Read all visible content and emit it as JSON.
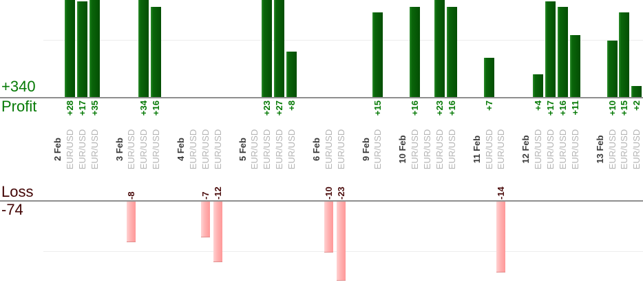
{
  "labels": {
    "profit_total": "+340",
    "profit_axis": "Profit",
    "loss_axis": "Loss",
    "loss_total": "-74"
  },
  "chart_data": {
    "type": "bar",
    "title": "",
    "orientation": "vertical",
    "profit_total": "+340",
    "loss_total": "-74",
    "ylabel_profit": "Profit",
    "ylabel_loss": "Loss",
    "gridlines": {
      "profit_value": 10,
      "loss_value": -10
    },
    "value_label_format": "signed",
    "groups": [
      {
        "date": "2 Feb",
        "trades": [
          {
            "symbol": "EUR/USD",
            "value": 28
          },
          {
            "symbol": "EUR/USD",
            "value": 17
          },
          {
            "symbol": "EUR/USD",
            "value": 35
          }
        ]
      },
      {
        "date": "3 Feb",
        "trades": [
          {
            "symbol": "EUR/USD",
            "value": -8
          },
          {
            "symbol": "EUR/USD",
            "value": 34
          },
          {
            "symbol": "EUR/USD",
            "value": 16
          }
        ]
      },
      {
        "date": "4 Feb",
        "trades": [
          {
            "symbol": "EUR/USD",
            "value": 0
          },
          {
            "symbol": "EUR/USD",
            "value": -7
          },
          {
            "symbol": "EUR/USD",
            "value": -12
          }
        ]
      },
      {
        "date": "5 Feb",
        "trades": [
          {
            "symbol": "EUR/USD",
            "value": 0
          },
          {
            "symbol": "EUR/USD",
            "value": 23
          },
          {
            "symbol": "EUR/USD",
            "value": 27
          },
          {
            "symbol": "EUR/USD",
            "value": 8
          }
        ]
      },
      {
        "date": "6 Feb",
        "trades": [
          {
            "symbol": "EUR/USD",
            "value": -10
          },
          {
            "symbol": "EUR/USD",
            "value": -23
          }
        ]
      },
      {
        "date": "9 Feb",
        "trades": [
          {
            "symbol": "EUR/USD",
            "value": 15
          }
        ]
      },
      {
        "date": "10 Feb",
        "trades": [
          {
            "symbol": "EUR/USD",
            "value": 16
          },
          {
            "symbol": "EUR/USD",
            "value": 0
          },
          {
            "symbol": "EUR/USD",
            "value": 23
          },
          {
            "symbol": "EUR/USD",
            "value": 16
          }
        ]
      },
      {
        "date": "11 Feb",
        "trades": [
          {
            "symbol": "EUR/USD",
            "value": 7
          },
          {
            "symbol": "EUR/USD",
            "value": -14
          }
        ]
      },
      {
        "date": "12 Feb",
        "trades": [
          {
            "symbol": "EUR/USD",
            "value": 4
          },
          {
            "symbol": "EUR/USD",
            "value": 17
          },
          {
            "symbol": "EUR/USD",
            "value": 16
          },
          {
            "symbol": "EUR/USD",
            "value": 11
          }
        ]
      },
      {
        "date": "13 Feb",
        "trades": [
          {
            "symbol": "EUR/USD",
            "value": 10
          },
          {
            "symbol": "EUR/USD",
            "value": 15
          },
          {
            "symbol": "EUR/USD",
            "value": 2
          }
        ]
      }
    ],
    "colors": {
      "profit_bar": "#0a660a",
      "profit_text": "#067a06",
      "loss_bar": "#ffb2b2",
      "loss_text": "#4a0b0b",
      "loss_dark": "#420404",
      "date_text": "#3a3a3a",
      "symbol_text": "#b5b5b5"
    }
  }
}
